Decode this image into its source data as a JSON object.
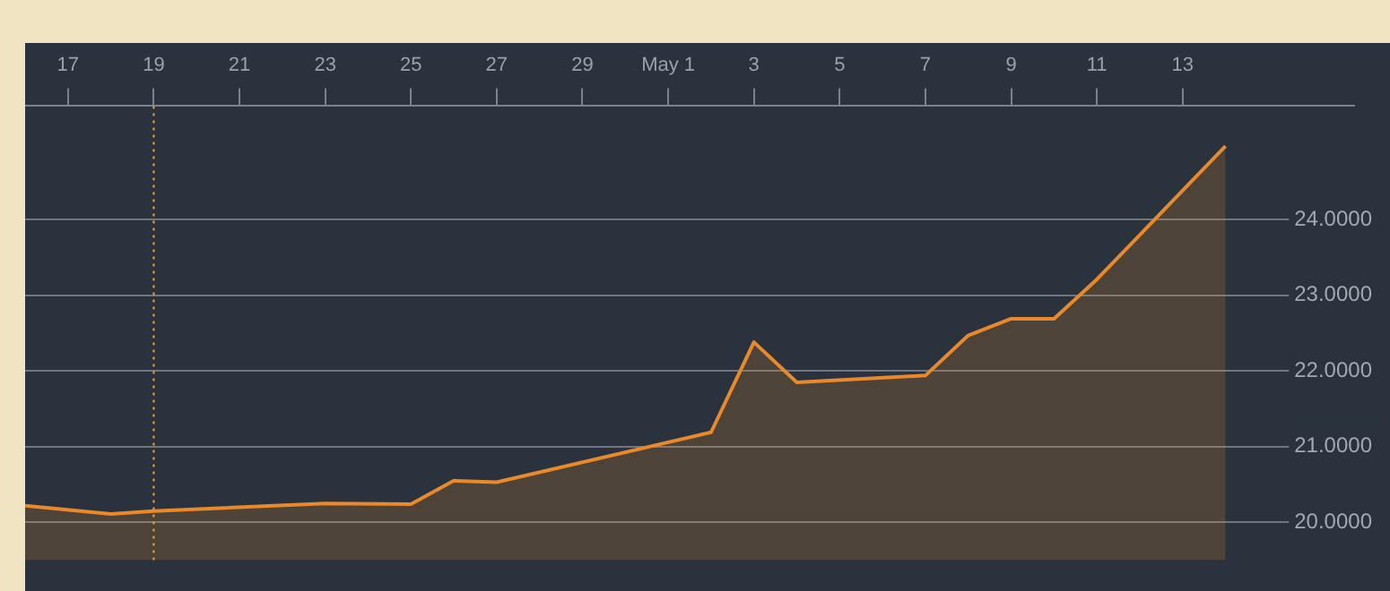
{
  "chart_data": {
    "type": "area",
    "x": [
      "--04-16",
      "--04-18",
      "--04-19",
      "--04-23",
      "--04-25",
      "--04-26",
      "--04-27",
      "--05-02",
      "--05-03",
      "--05-04",
      "--05-07",
      "--05-08",
      "--05-09",
      "--05-10",
      "--05-11",
      "--05-14"
    ],
    "values": [
      20.22,
      20.11,
      20.15,
      20.25,
      20.24,
      20.55,
      20.53,
      21.19,
      22.38,
      21.85,
      21.94,
      22.47,
      22.69,
      22.69,
      23.21,
      24.97
    ],
    "color": "#e8892b",
    "xlim": [
      "--04-16",
      "--05-17"
    ],
    "xticks": [
      {
        "value": "--04-17",
        "label": "17"
      },
      {
        "value": "--04-19",
        "label": "19"
      },
      {
        "value": "--04-21",
        "label": "21"
      },
      {
        "value": "--04-23",
        "label": "23"
      },
      {
        "value": "--04-25",
        "label": "25"
      },
      {
        "value": "--04-27",
        "label": "27"
      },
      {
        "value": "--04-29",
        "label": "29"
      },
      {
        "value": "--05-01",
        "label": "May 1"
      },
      {
        "value": "--05-03",
        "label": "3"
      },
      {
        "value": "--05-05",
        "label": "5"
      },
      {
        "value": "--05-07",
        "label": "7"
      },
      {
        "value": "--05-09",
        "label": "9"
      },
      {
        "value": "--05-11",
        "label": "11"
      },
      {
        "value": "--05-13",
        "label": "13"
      }
    ],
    "ylim": [
      19.5,
      25.5
    ],
    "yticks": [
      {
        "value": 20,
        "label": "20.0000"
      },
      {
        "value": 21,
        "label": "21.0000"
      },
      {
        "value": 22,
        "label": "22.0000"
      },
      {
        "value": 23,
        "label": "23.0000"
      },
      {
        "value": 24,
        "label": "24.0000"
      }
    ],
    "grid": "y",
    "legend": false,
    "ref_lines": [
      {
        "axis": "x",
        "value": "--04-19",
        "color": "#e8a23a",
        "line_style": "dotted"
      }
    ]
  }
}
